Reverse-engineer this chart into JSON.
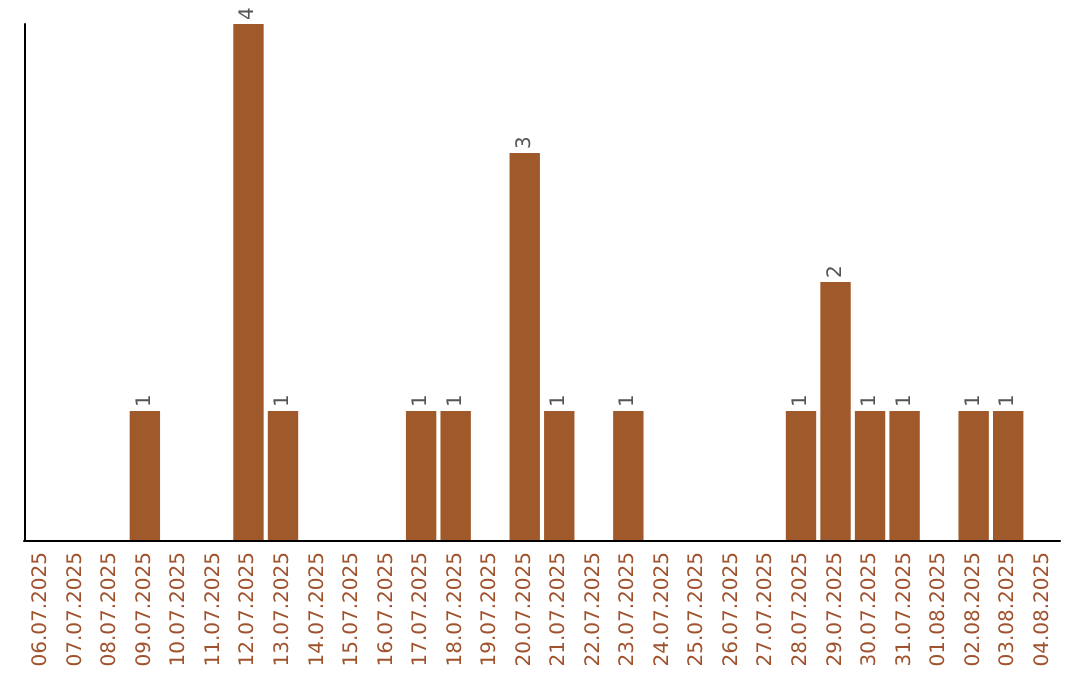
{
  "chart_data": {
    "type": "bar",
    "categories": [
      "06.07.2025",
      "07.07.2025",
      "08.07.2025",
      "09.07.2025",
      "10.07.2025",
      "11.07.2025",
      "12.07.2025",
      "13.07.2025",
      "14.07.2025",
      "15.07.2025",
      "16.07.2025",
      "17.07.2025",
      "18.07.2025",
      "19.07.2025",
      "20.07.2025",
      "21.07.2025",
      "22.07.2025",
      "23.07.2025",
      "24.07.2025",
      "25.07.2025",
      "26.07.2025",
      "27.07.2025",
      "28.07.2025",
      "29.07.2025",
      "30.07.2025",
      "31.07.2025",
      "01.08.2025",
      "02.08.2025",
      "03.08.2025",
      "04.08.2025"
    ],
    "values": [
      0,
      0,
      0,
      1,
      0,
      0,
      4,
      1,
      0,
      0,
      0,
      1,
      1,
      0,
      3,
      1,
      0,
      1,
      0,
      0,
      0,
      0,
      1,
      2,
      1,
      1,
      0,
      1,
      1,
      0
    ],
    "value_labels": [
      null,
      null,
      null,
      "1",
      null,
      null,
      "4",
      "1",
      null,
      null,
      null,
      "1",
      "1",
      null,
      "3",
      "1",
      null,
      "1",
      null,
      null,
      null,
      null,
      "1",
      "2",
      "1",
      "1",
      null,
      "1",
      "1",
      null
    ],
    "color": "#a0592a",
    "grid": false
  }
}
